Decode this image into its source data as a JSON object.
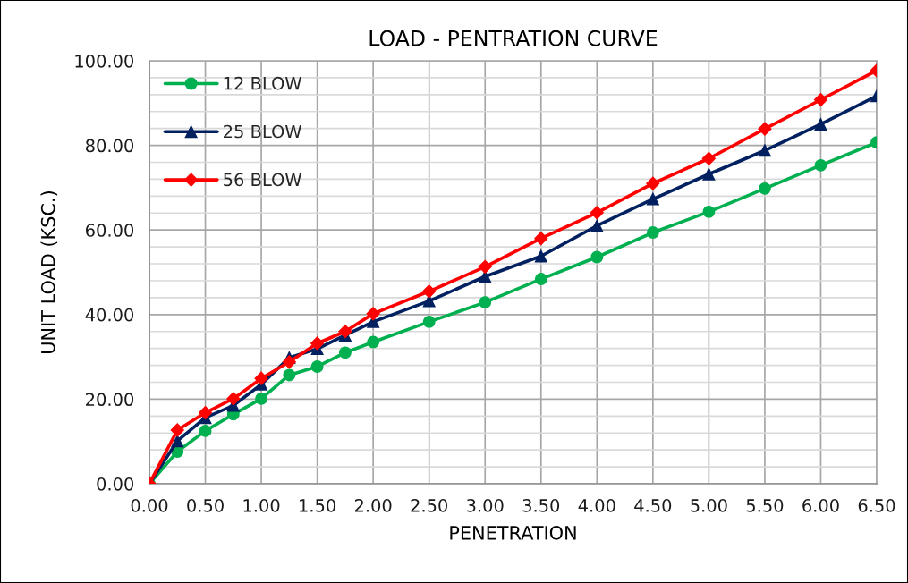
{
  "chart_data": {
    "type": "line",
    "title": "LOAD - PENTRATION CURVE",
    "xlabel": "PENETRATION",
    "ylabel": "UNIT LOAD (KSC.)",
    "x": [
      0,
      0.25,
      0.5,
      0.75,
      1,
      1.25,
      1.5,
      1.75,
      2,
      2.5,
      3,
      3.5,
      4,
      4.5,
      5,
      5.5,
      6,
      6.5
    ],
    "series": [
      {
        "name": "12 BLOW",
        "color": "#00b050",
        "marker": "circle",
        "values": [
          0,
          7.6,
          12.5,
          16.4,
          20.1,
          25.7,
          27.7,
          31.0,
          33.5,
          38.3,
          42.9,
          48.4,
          53.6,
          59.4,
          64.3,
          69.8,
          75.3,
          80.7
        ]
      },
      {
        "name": "25 BLOW",
        "color": "#002060",
        "marker": "triangle",
        "values": [
          0,
          10.1,
          15.6,
          18.5,
          23.5,
          29.8,
          31.9,
          35.1,
          38.3,
          43.2,
          49.0,
          53.8,
          61.0,
          67.3,
          73.2,
          78.8,
          85.0,
          91.7
        ]
      },
      {
        "name": "56 BLOW",
        "color": "#ff0000",
        "marker": "diamond",
        "values": [
          0,
          12.7,
          16.8,
          20.1,
          24.9,
          28.8,
          33.2,
          36.0,
          40.2,
          45.5,
          51.3,
          58.0,
          64.1,
          71.0,
          76.9,
          83.9,
          90.8,
          97.7
        ]
      }
    ],
    "xlim": [
      0,
      6.5
    ],
    "xticks": [
      {
        "value": 0,
        "label": "0.00"
      },
      {
        "value": 0.5,
        "label": "0.50"
      },
      {
        "value": 1,
        "label": "1.00"
      },
      {
        "value": 1.5,
        "label": "1.50"
      },
      {
        "value": 2,
        "label": "2.00"
      },
      {
        "value": 2.5,
        "label": "2.50"
      },
      {
        "value": 3,
        "label": "3.00"
      },
      {
        "value": 3.5,
        "label": "3.50"
      },
      {
        "value": 4,
        "label": "4.00"
      },
      {
        "value": 4.5,
        "label": "4.50"
      },
      {
        "value": 5,
        "label": "5.00"
      },
      {
        "value": 5.5,
        "label": "5.50"
      },
      {
        "value": 6,
        "label": "6.00"
      },
      {
        "value": 6.5,
        "label": "6.50"
      }
    ],
    "ylim": [
      0,
      100
    ],
    "yticks": [
      {
        "value": 0,
        "label": "0.00"
      },
      {
        "value": 4,
        "label": null
      },
      {
        "value": 8,
        "label": null
      },
      {
        "value": 12,
        "label": null
      },
      {
        "value": 16,
        "label": null
      },
      {
        "value": 20,
        "label": "20.00"
      },
      {
        "value": 24,
        "label": null
      },
      {
        "value": 28,
        "label": null
      },
      {
        "value": 32,
        "label": null
      },
      {
        "value": 36,
        "label": null
      },
      {
        "value": 40,
        "label": "40.00"
      },
      {
        "value": 44,
        "label": null
      },
      {
        "value": 48,
        "label": null
      },
      {
        "value": 52,
        "label": null
      },
      {
        "value": 56,
        "label": null
      },
      {
        "value": 60,
        "label": "60.00"
      },
      {
        "value": 64,
        "label": null
      },
      {
        "value": 68,
        "label": null
      },
      {
        "value": 72,
        "label": null
      },
      {
        "value": 76,
        "label": null
      },
      {
        "value": 80,
        "label": "80.00"
      },
      {
        "value": 84,
        "label": null
      },
      {
        "value": 88,
        "label": null
      },
      {
        "value": 92,
        "label": null
      },
      {
        "value": 96,
        "label": null
      },
      {
        "value": 100,
        "label": "100.00"
      }
    ],
    "grid": true,
    "legend": "top left",
    "line_style": "solid"
  }
}
